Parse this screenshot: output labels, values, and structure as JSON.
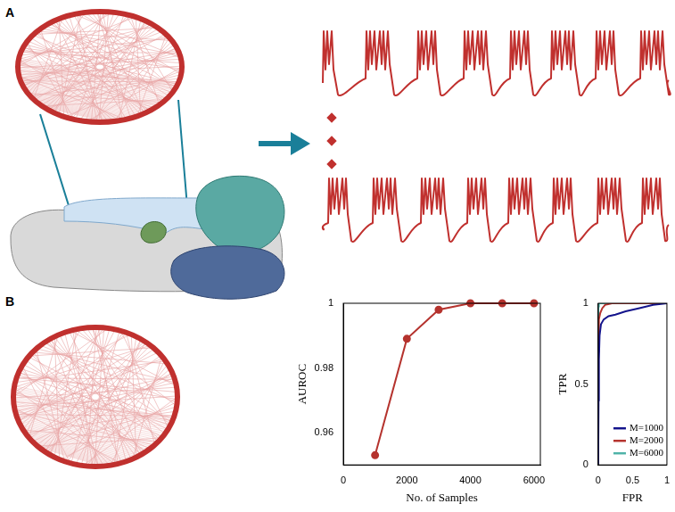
{
  "panels": [
    {
      "label": "A"
    },
    {
      "label": "B"
    }
  ],
  "chart_data": [
    {
      "type": "line",
      "x_label": "No. of Samples",
      "y_label": "AUROC",
      "x": [
        1000,
        2000,
        3000,
        4000,
        5000,
        6000
      ],
      "values": [
        0.953,
        0.989,
        0.998,
        1.0,
        1.0,
        1.0
      ],
      "color": "#b5332e",
      "marker": "circle",
      "xlim": [
        0,
        6200
      ],
      "xticks": [
        0,
        2000,
        4000,
        6000
      ],
      "ylim": [
        0.95,
        1.0
      ],
      "yticks": [
        0.96,
        0.98,
        1
      ],
      "grid": false
    },
    {
      "type": "line",
      "x_label": "FPR",
      "y_label": "TPR",
      "series": [
        {
          "name": "M=1000",
          "color": "#14148c",
          "x": [
            0,
            0.005,
            0.01,
            0.02,
            0.04,
            0.08,
            0.15,
            0.25,
            0.4,
            0.6,
            0.8,
            1
          ],
          "values": [
            0,
            0.4,
            0.65,
            0.8,
            0.87,
            0.9,
            0.92,
            0.93,
            0.95,
            0.97,
            0.99,
            1
          ]
        },
        {
          "name": "M=2000",
          "color": "#b5332e",
          "x": [
            0,
            0.003,
            0.01,
            0.03,
            0.06,
            0.1,
            0.2,
            1
          ],
          "values": [
            0,
            0.7,
            0.9,
            0.94,
            0.97,
            0.99,
            1,
            1
          ]
        },
        {
          "name": "M=6000",
          "color": "#4fb3a8",
          "x": [
            0,
            0.002,
            0.01,
            1
          ],
          "values": [
            0,
            0.98,
            1,
            1
          ]
        }
      ],
      "marker": "none",
      "xlim": [
        0,
        1
      ],
      "xticks": [
        0,
        0.5,
        1
      ],
      "ylim": [
        0,
        1
      ],
      "yticks": [
        0,
        0.5,
        1
      ],
      "grid": false,
      "legend": "lower right"
    }
  ]
}
